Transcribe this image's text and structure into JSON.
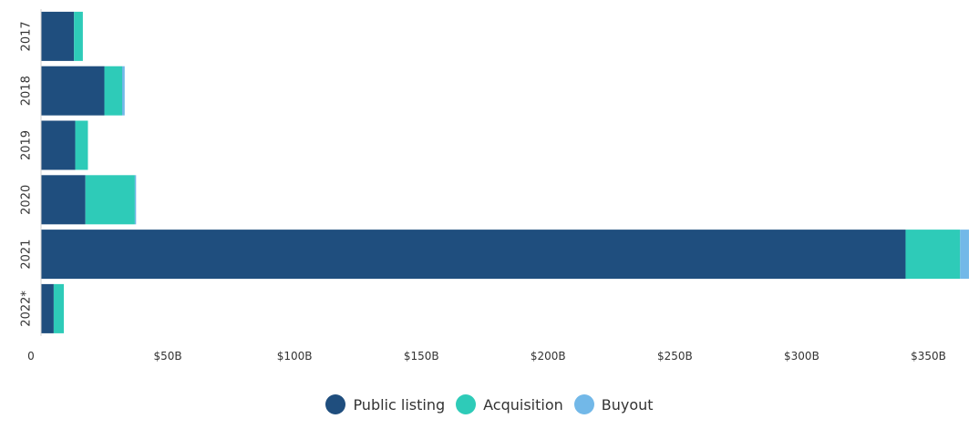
{
  "chart_data": {
    "type": "bar",
    "orientation": "horizontal",
    "stacked": true,
    "categories": [
      "2017",
      "2018",
      "2019",
      "2020",
      "2021",
      "2022*"
    ],
    "series": [
      {
        "name": "Public listing",
        "color": "#1f4e7e",
        "values": [
          13,
          25,
          13.5,
          17.5,
          341,
          5
        ]
      },
      {
        "name": "Acquisition",
        "color": "#2ecbb8",
        "values": [
          3.5,
          7,
          5,
          19.5,
          21.5,
          4
        ]
      },
      {
        "name": "Buyout",
        "color": "#72b8e8",
        "values": [
          0,
          1,
          0,
          0.5,
          3.5,
          0
        ]
      }
    ],
    "xticks": [
      "0",
      "$50B",
      "$100B",
      "$150B",
      "$200B",
      "$250B",
      "$300B",
      "$350B"
    ],
    "xtick_values": [
      0,
      50,
      100,
      150,
      200,
      250,
      300,
      350
    ],
    "xlim": [
      0,
      366
    ],
    "grid": false,
    "legend_position": "bottom"
  }
}
